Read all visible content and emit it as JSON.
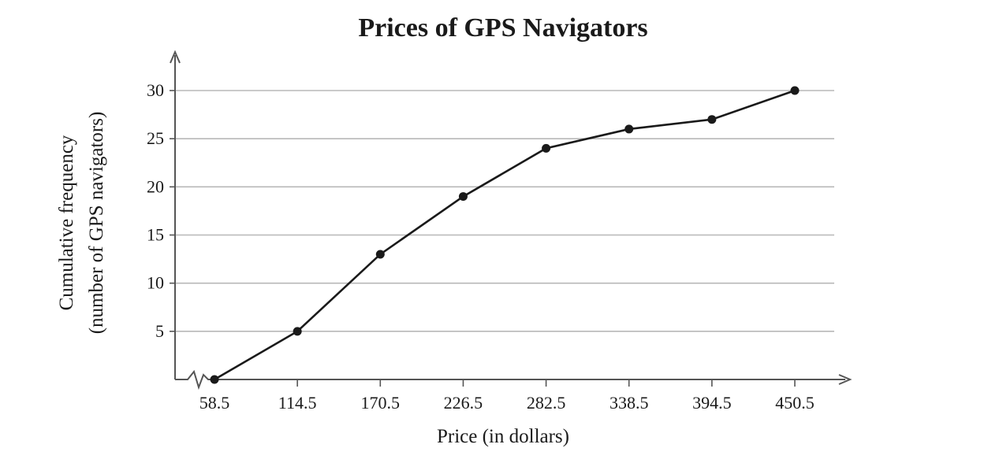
{
  "chart_data": {
    "type": "line",
    "title": "Prices of GPS Navigators",
    "xlabel": "Price (in dollars)",
    "ylabel_line1": "Cumulative frequency",
    "ylabel_line2": "(number of GPS navigators)",
    "categories": [
      "58.5",
      "114.5",
      "170.5",
      "226.5",
      "282.5",
      "338.5",
      "394.5",
      "450.5"
    ],
    "x": [
      58.5,
      114.5,
      170.5,
      226.5,
      282.5,
      338.5,
      394.5,
      450.5
    ],
    "values": [
      0,
      5,
      13,
      19,
      24,
      26,
      27,
      30
    ],
    "yticks": [
      5,
      10,
      15,
      20,
      25,
      30
    ],
    "ylim": [
      0,
      30
    ],
    "grid": true,
    "axis_break": true,
    "colors": {
      "line": "#1a1a1a",
      "grid": "#b8b8b8",
      "axis": "#555555"
    }
  }
}
